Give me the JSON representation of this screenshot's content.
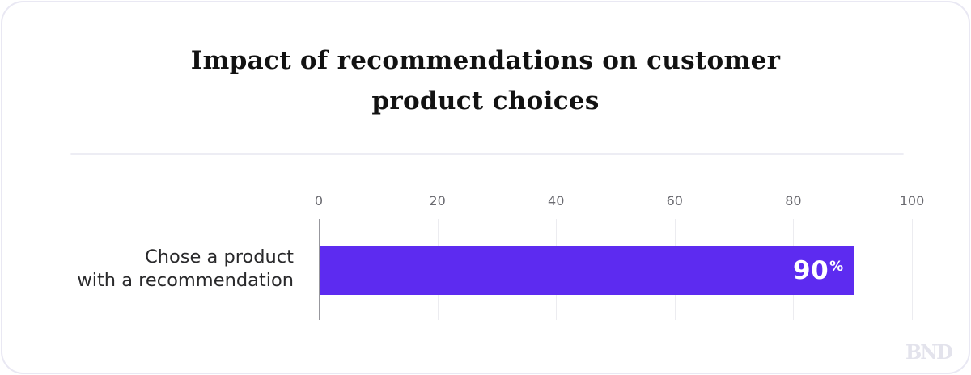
{
  "title": {
    "lines": [
      "Impact of recommendations on customer",
      "product choices"
    ]
  },
  "chart_data": {
    "type": "bar",
    "orientation": "horizontal",
    "title": "Impact of recommendations on customer product choices",
    "categories": [
      "Chose a product with a recommendation"
    ],
    "values": [
      90
    ],
    "value_labels": [
      "90%"
    ],
    "xlabel": "",
    "ylabel": "",
    "xlim": [
      0,
      100
    ],
    "xticks": [
      "0",
      "20",
      "40",
      "60",
      "80",
      "100"
    ],
    "grid": "vertical-gridlines",
    "legend": "none",
    "bar_color": "#5D2BF0"
  },
  "category_label": {
    "lines": [
      "Chose a product",
      "with a recommendation"
    ]
  },
  "bar": {
    "value_text": "90",
    "percent_sign": "%"
  },
  "watermark": "BND",
  "colors": {
    "bar": "#5D2BF0",
    "card_border": "#e9e8f3",
    "divider": "#ededf4",
    "axis_line": "#97979d",
    "gridline": "#ececf0",
    "tick_text": "#6a6a70",
    "category_text": "#29292b",
    "title_text": "#121212",
    "watermark_text": "#e3e3ec"
  }
}
